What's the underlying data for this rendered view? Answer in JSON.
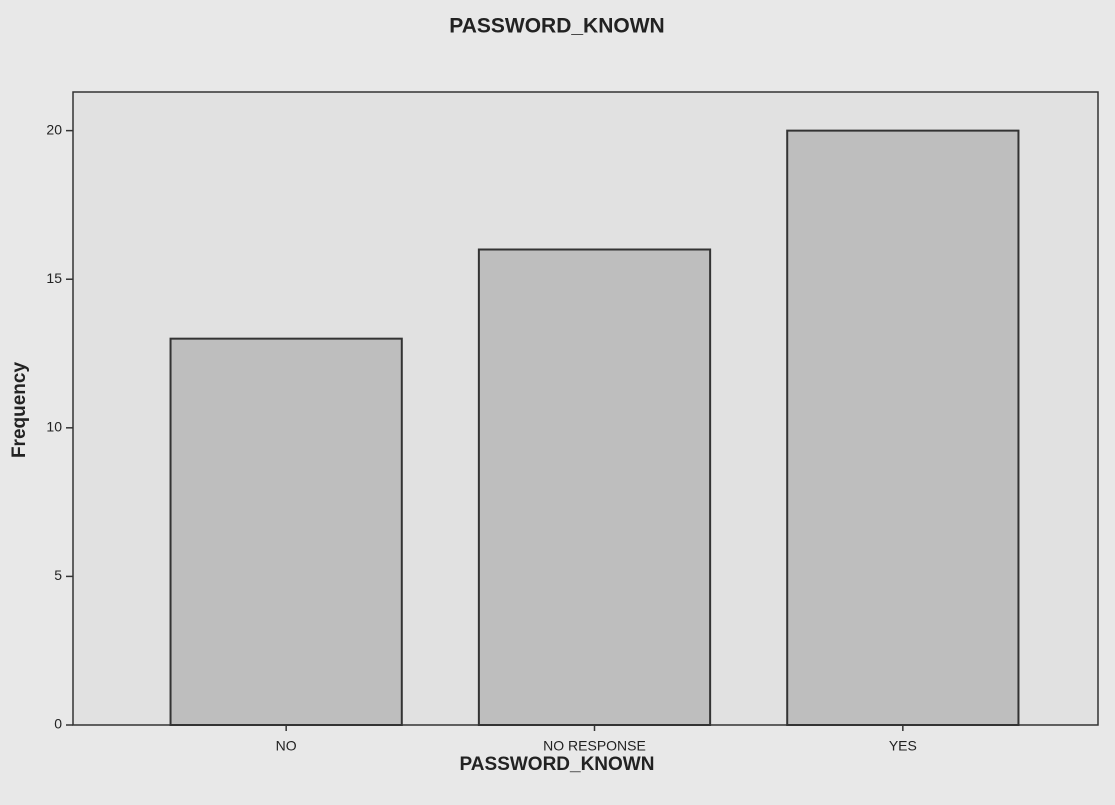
{
  "chart_data": {
    "type": "bar",
    "title": "PASSWORD_KNOWN",
    "x_label": "PASSWORD_KNOWN",
    "y_label": "Frequency",
    "categories": [
      "NO",
      "NO RESPONSE",
      "YES"
    ],
    "values": [
      13,
      16,
      20
    ],
    "color": "#bebebe",
    "ylim": [
      0,
      21.3
    ],
    "yticks": [
      0,
      5,
      10,
      15,
      20
    ],
    "grid": false
  }
}
